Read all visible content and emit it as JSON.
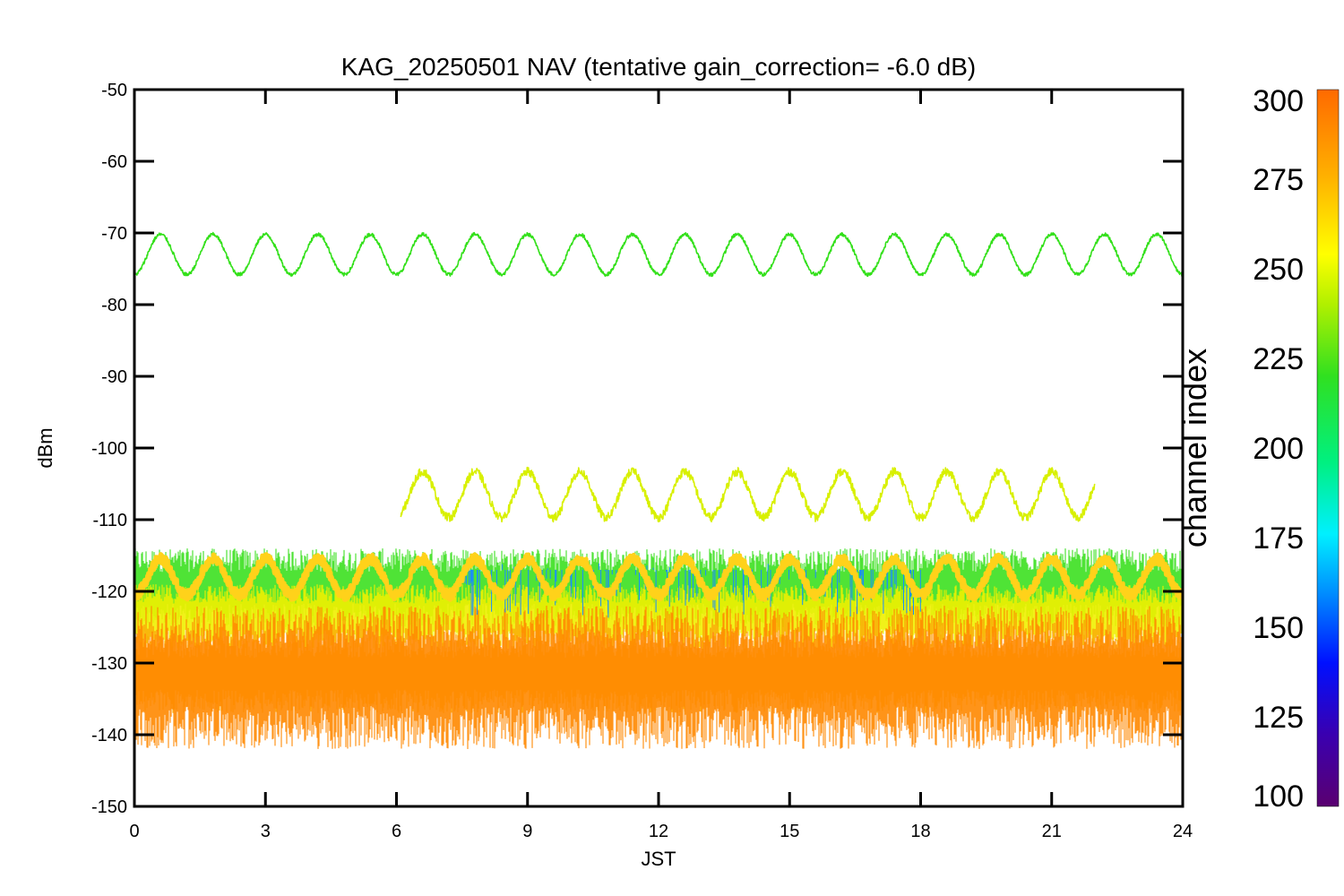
{
  "chart_data": {
    "type": "line",
    "title": "KAG_20250501 NAV (tentative gain_correction= -6.0 dB)",
    "xlabel": "JST",
    "ylabel": "dBm",
    "xlim": [
      0,
      24
    ],
    "ylim": [
      -150,
      -50
    ],
    "xticks": [
      0,
      3,
      6,
      9,
      12,
      15,
      18,
      21,
      24
    ],
    "yticks": [
      -50,
      -60,
      -70,
      -80,
      -90,
      -100,
      -110,
      -120,
      -130,
      -140,
      -150
    ],
    "grid": false,
    "colorbar": {
      "label": "channel index",
      "range": [
        100,
        300
      ],
      "ticks": [
        300,
        275,
        250,
        225,
        200,
        175,
        150,
        125,
        100
      ],
      "colormap": "rainbow"
    },
    "series": [
      {
        "channel": 240,
        "color": "#33e01a",
        "x_range": [
          0,
          24
        ],
        "mean": -73,
        "amplitude": 2.8,
        "period_hours": 1.2,
        "noise": 0.25
      },
      {
        "channel": 265,
        "color": "#d8f000",
        "x_range": [
          6.1,
          22.0
        ],
        "mean": -106.5,
        "amplitude": 3.2,
        "period_hours": 1.2,
        "noise": 0.6
      },
      {
        "channel": 268,
        "color": "#ffd21a",
        "x_range": [
          0,
          24
        ],
        "mean": -118,
        "amplitude": 2.5,
        "period_hours": 1.2,
        "noise": 0.7
      }
    ],
    "noise_bands": [
      {
        "channel_range": [
          245,
          258
        ],
        "color": "#3ce020",
        "range": [
          -125,
          -114
        ]
      },
      {
        "channel_range": [
          265,
          272
        ],
        "color": "#f0f000",
        "range": [
          -128,
          -119
        ]
      },
      {
        "channel_range": [
          275,
          285
        ],
        "color": "#ffb000",
        "range": [
          -137,
          -126
        ]
      },
      {
        "channel_range": [
          288,
          300
        ],
        "color": "#ff8800",
        "range": [
          -142,
          -122
        ]
      }
    ]
  }
}
